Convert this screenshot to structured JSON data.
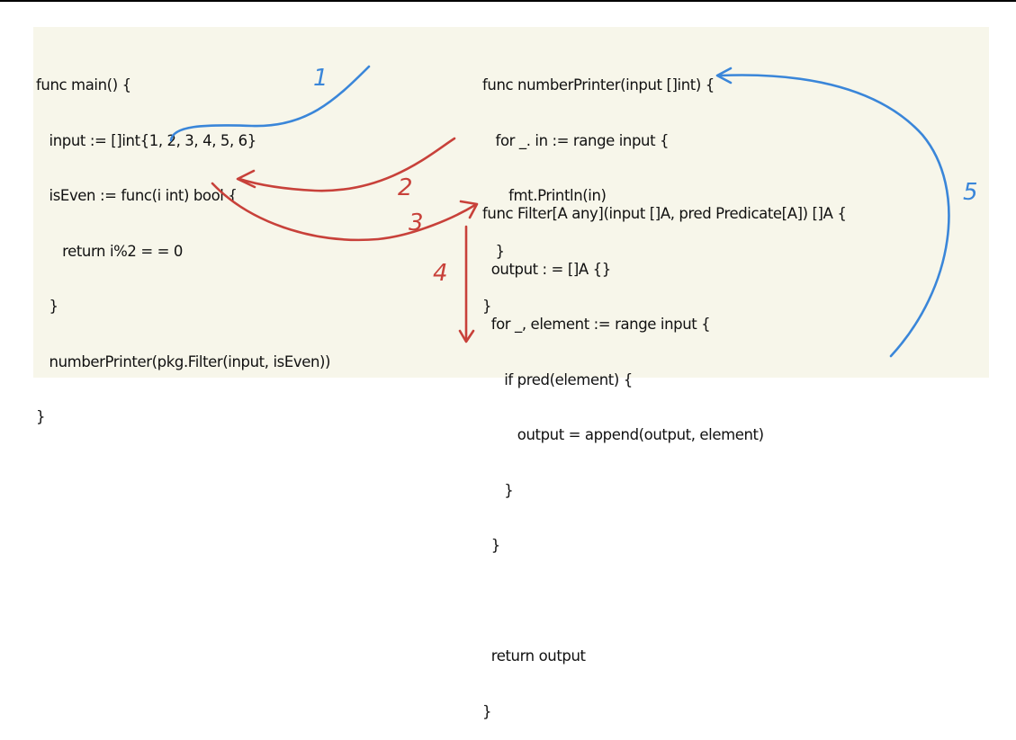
{
  "colors": {
    "background": "#f7f6ea",
    "code_text": "#111111",
    "blue_annotation": "#3a86d9",
    "red_annotation": "#c8413a"
  },
  "main_code": [
    "func main() {",
    "   input := []int{1, 2, 3, 4, 5, 6}",
    "   isEven := func(i int) bool {",
    "      return i%2 = = 0",
    "   }",
    "   numberPrinter(pkg.Filter(input, isEven))",
    "}"
  ],
  "printer_code": [
    "func numberPrinter(input []int) {",
    "   for _. in := range input {",
    "      fmt.Println(in)",
    "   }",
    "}"
  ],
  "filter_code": [
    "func Filter[A any](input []A, pred Predicate[A]) []A {",
    "  output : = []A {}",
    "  for _, element := range input {",
    "     if pred(element) {",
    "        output = append(output, element)",
    "     }",
    "  }",
    "",
    "  return output",
    "}"
  ],
  "annotations": {
    "step1": "1",
    "step2": "2",
    "step3": "3",
    "step4": "4",
    "step5": "5"
  }
}
